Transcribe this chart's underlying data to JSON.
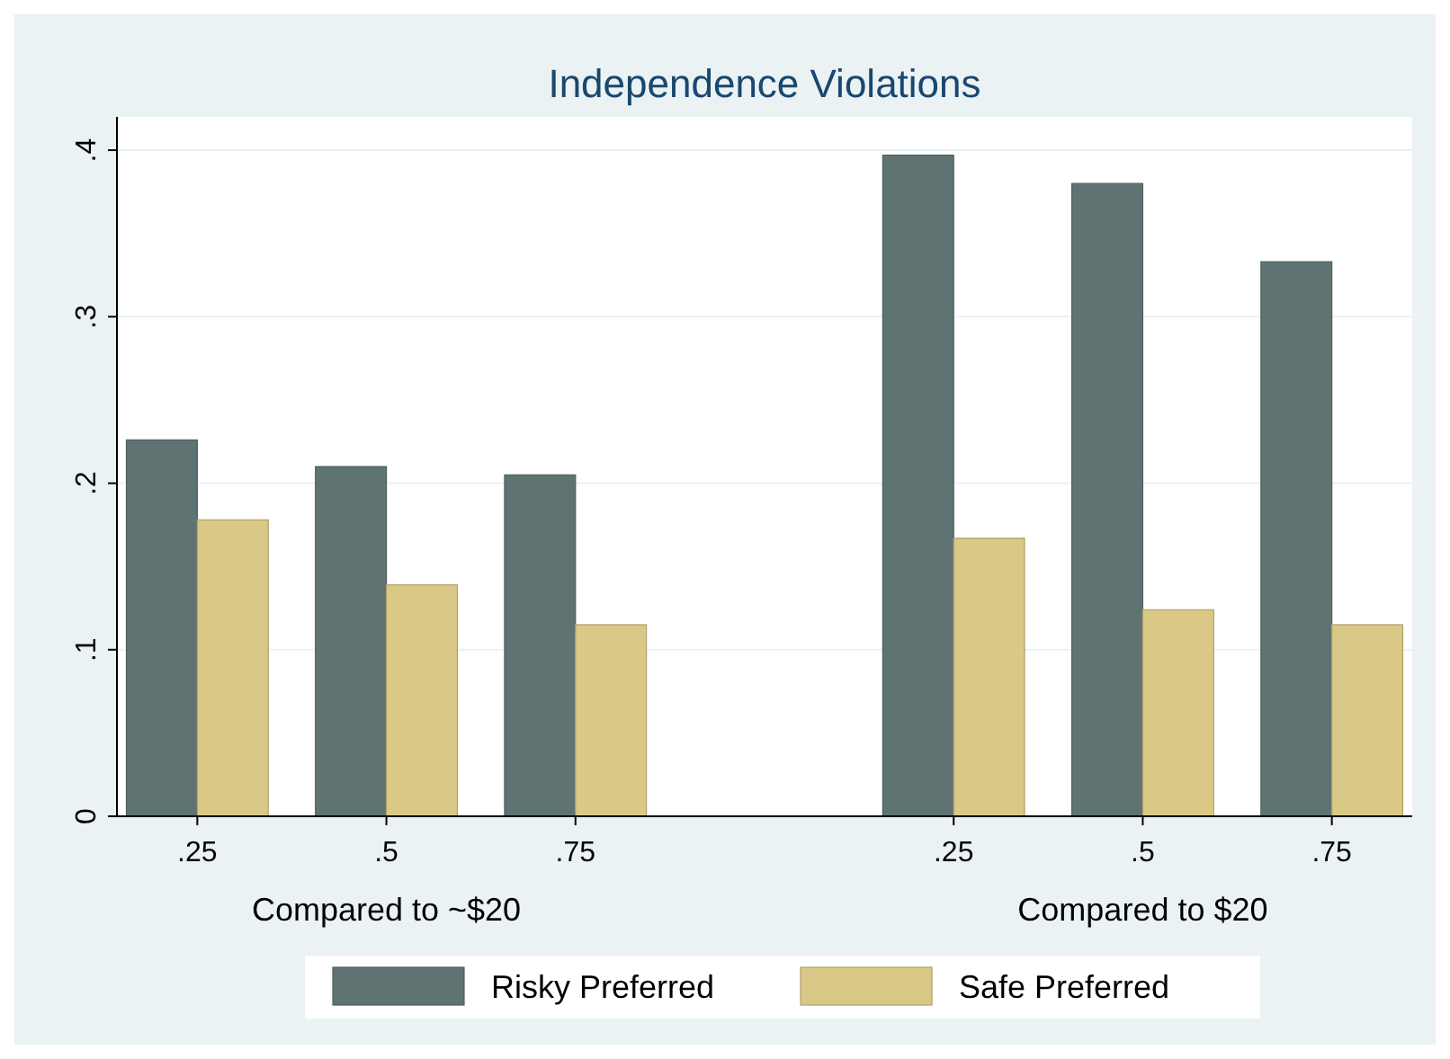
{
  "chart_data": {
    "type": "bar",
    "title": "Independence Violations",
    "categories": [
      ".25",
      ".5",
      ".75",
      null,
      ".25",
      ".5",
      ".75"
    ],
    "series": [
      {
        "name": "Risky Preferred",
        "color": "#5f7472",
        "values": [
          0.226,
          0.21,
          0.205,
          null,
          0.397,
          0.38,
          0.333
        ]
      },
      {
        "name": "Safe Preferred",
        "color": "#dac886",
        "values": [
          0.178,
          0.139,
          0.115,
          null,
          0.167,
          0.124,
          0.115
        ]
      }
    ],
    "annotations": [
      "Compared to ~$20",
      "Compared to $20"
    ],
    "ylim": [
      0,
      0.42
    ],
    "yticks": [
      0,
      {
        "value": 0.1,
        "label": ".1"
      },
      {
        "value": 0.2,
        "label": ".2"
      },
      {
        "value": 0.3,
        "label": ".3"
      },
      {
        "value": 0.4,
        "label": ".4"
      }
    ],
    "grid": "y",
    "legend": "bottom"
  }
}
